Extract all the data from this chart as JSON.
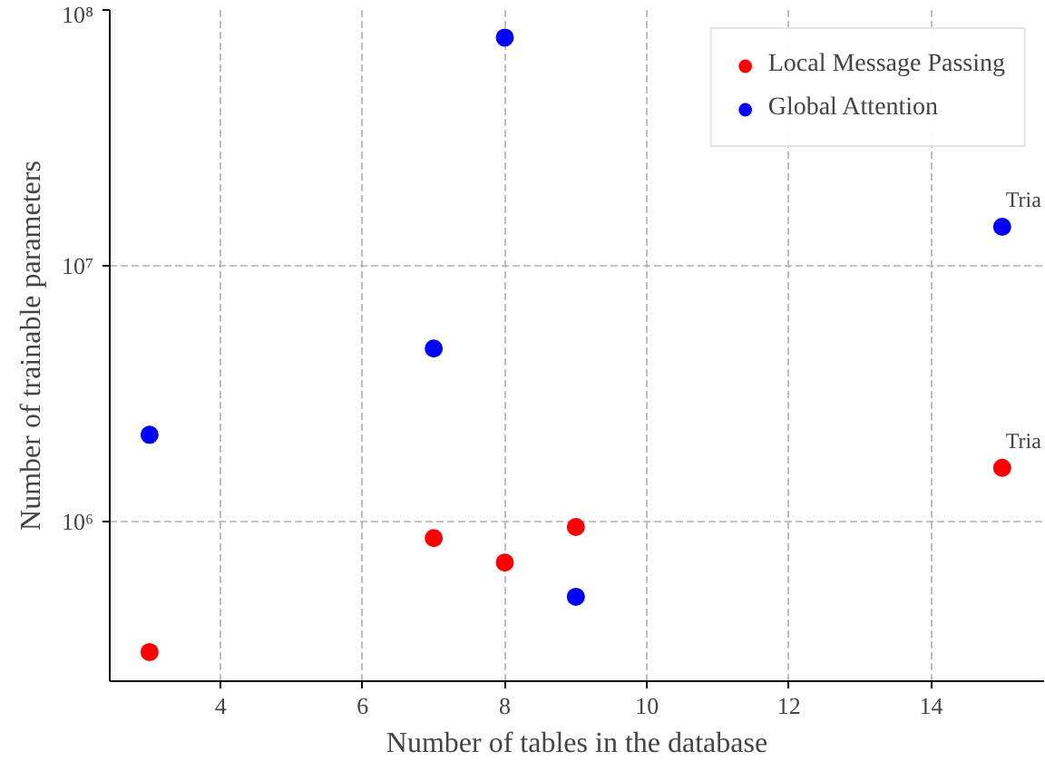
{
  "chart_data": {
    "type": "scatter",
    "xlabel": "Number of tables in the database",
    "ylabel": "Number of trainable parameters",
    "x": [
      3,
      7,
      8,
      9,
      15
    ],
    "series": [
      {
        "name": "Local Message Passing",
        "color": "#ff0000",
        "values": [
          308000,
          860000,
          690000,
          950000,
          1620000
        ]
      },
      {
        "name": "Global Attention",
        "color": "#0000ff",
        "values": [
          2180000,
          4740000,
          78000000,
          507000,
          14200000
        ]
      }
    ],
    "annotations": [
      {
        "text": "Tria",
        "x": 15,
        "y": 1620000
      },
      {
        "text": "Tria",
        "x": 15,
        "y": 14200000
      }
    ],
    "log": "y",
    "xlim": [
      2.44,
      15.59
    ],
    "ylim": [
      237000,
      100000000
    ],
    "xticks": [
      4,
      6,
      8,
      10,
      12,
      14
    ],
    "yticks": [
      {
        "value": 1000000,
        "label": "10⁶"
      },
      {
        "value": 10000000,
        "label": "10⁷"
      },
      {
        "value": 100000000,
        "label": "10⁸"
      }
    ],
    "grid": true,
    "legend": "top right",
    "marker": "circle"
  }
}
